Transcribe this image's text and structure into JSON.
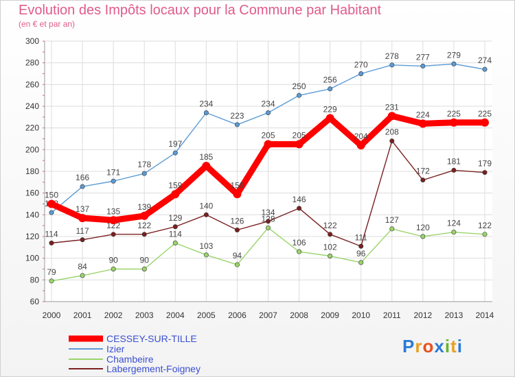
{
  "chart_data": {
    "type": "line",
    "title": "Evolution des Impôts locaux pour la Commune par Habitant",
    "subtitle": "(en € et par an)",
    "categories": [
      "2000",
      "2001",
      "2002",
      "2003",
      "2004",
      "2005",
      "2006",
      "2007",
      "2008",
      "2009",
      "2010",
      "2011",
      "2012",
      "2013",
      "2014"
    ],
    "yticks": [
      60,
      80,
      100,
      120,
      140,
      160,
      180,
      200,
      220,
      240,
      260,
      280,
      300
    ],
    "ylim": [
      60,
      300
    ],
    "grid": true,
    "series": [
      {
        "name": "Izier",
        "color": "#5b9bd5",
        "values": [
          142,
          166,
          171,
          178,
          197,
          234,
          223,
          234,
          250,
          256,
          270,
          278,
          277,
          279,
          274
        ]
      },
      {
        "name": "Chambeire",
        "color": "#9ad46a",
        "values": [
          79,
          84,
          90,
          90,
          114,
          103,
          94,
          128,
          106,
          102,
          96,
          127,
          120,
          124,
          122
        ]
      },
      {
        "name": "Labergement-Foigney",
        "color": "#7a2020",
        "values": [
          114,
          117,
          122,
          122,
          129,
          140,
          126,
          134,
          146,
          122,
          111,
          208,
          172,
          181,
          179
        ]
      },
      {
        "name": "CESSEY-SUR-TILLE",
        "color": "#ff0000",
        "values": [
          150,
          137,
          135,
          139,
          159,
          185,
          159,
          205,
          205,
          229,
          204,
          231,
          224,
          225,
          225
        ]
      }
    ],
    "legend": [
      {
        "name": "CESSEY-SUR-TILLE",
        "color": "#ff0000"
      },
      {
        "name": "Izier",
        "color": "#5b9bd5"
      },
      {
        "name": "Chambeire",
        "color": "#9ad46a"
      },
      {
        "name": "Labergement-Foigney",
        "color": "#7a2020"
      }
    ],
    "legend_position": "bottom-left"
  },
  "logo": {
    "text": "Proxiti",
    "letters": [
      "P",
      "r",
      "o",
      "x",
      "i",
      "t",
      "i"
    ],
    "colors": [
      "#2b7bd6",
      "#e8a020",
      "#e85020",
      "#2b7bd6",
      "#6ab42c",
      "#e8a020",
      "#2b7bd6"
    ]
  }
}
